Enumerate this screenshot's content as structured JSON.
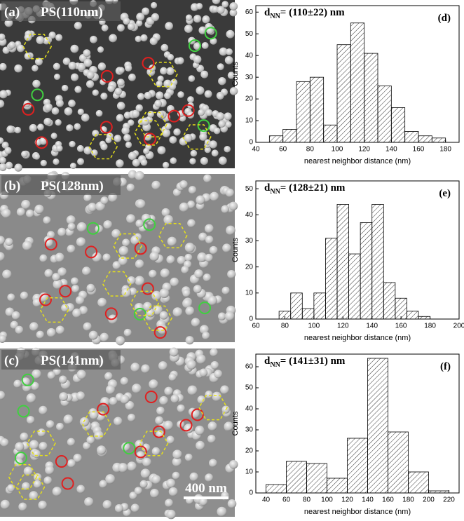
{
  "images": [
    {
      "label": "(a)",
      "title": "PS(110nm)"
    },
    {
      "label": "(b)",
      "title": "PS(128nm)"
    },
    {
      "label": "(c)",
      "title": "PS(141nm)"
    }
  ],
  "scale_bar": "400 nm",
  "chart_data": [
    {
      "type": "histogram",
      "panel": "(d)",
      "annotation": {
        "main": "d",
        "sub": "NN",
        "rest": "= (110±22) nm"
      },
      "x_label": "nearest neighbor distance (nm)",
      "y_label": "Counts",
      "bins": [
        50,
        60,
        70,
        80,
        90,
        100,
        110,
        120,
        130,
        140,
        150,
        160,
        170,
        180
      ],
      "values": [
        3,
        6,
        28,
        30,
        8,
        45,
        55,
        41,
        26,
        16,
        5,
        3,
        2
      ],
      "xlim": [
        40,
        190
      ],
      "xticks": [
        40,
        60,
        80,
        100,
        120,
        140,
        160,
        180
      ],
      "ylim": [
        0,
        63
      ],
      "yticks": [
        0,
        10,
        20,
        30,
        40,
        50,
        60
      ],
      "hatch": true,
      "color": "#ffffff"
    },
    {
      "type": "histogram",
      "panel": "(e)",
      "annotation": {
        "main": "d",
        "sub": "NN",
        "rest": "= (128±21) nm"
      },
      "x_label": "nearest neighbor distance (nm)",
      "y_label": "Counts",
      "bins": [
        76,
        84,
        92,
        100,
        108,
        116,
        124,
        132,
        140,
        148,
        156,
        164,
        172,
        180
      ],
      "values": [
        3,
        10,
        4,
        10,
        31,
        44,
        25,
        37,
        44,
        14,
        8,
        3,
        1
      ],
      "xlim": [
        60,
        200
      ],
      "xticks": [
        60,
        80,
        100,
        120,
        140,
        160,
        180,
        200
      ],
      "ylim": [
        0,
        53
      ],
      "yticks": [
        0,
        10,
        20,
        30,
        40,
        50
      ],
      "hatch": true,
      "color": "#ffffff"
    },
    {
      "type": "histogram",
      "panel": "(f)",
      "annotation": {
        "main": "d",
        "sub": "NN",
        "rest": "= (141±31) nm"
      },
      "x_label": "nearest neighbor distance (nm)",
      "y_label": "Counts",
      "bins": [
        40,
        60,
        80,
        100,
        120,
        140,
        160,
        180,
        200,
        220
      ],
      "values": [
        4,
        15,
        14,
        7,
        26,
        64,
        29,
        10,
        1
      ],
      "xlim": [
        30,
        230
      ],
      "xticks": [
        40,
        60,
        80,
        100,
        120,
        140,
        160,
        180,
        200,
        220
      ],
      "ylim": [
        0,
        66
      ],
      "yticks": [
        0,
        10,
        20,
        30,
        40,
        50,
        60
      ],
      "hatch": true,
      "color": "#ffffff"
    }
  ]
}
